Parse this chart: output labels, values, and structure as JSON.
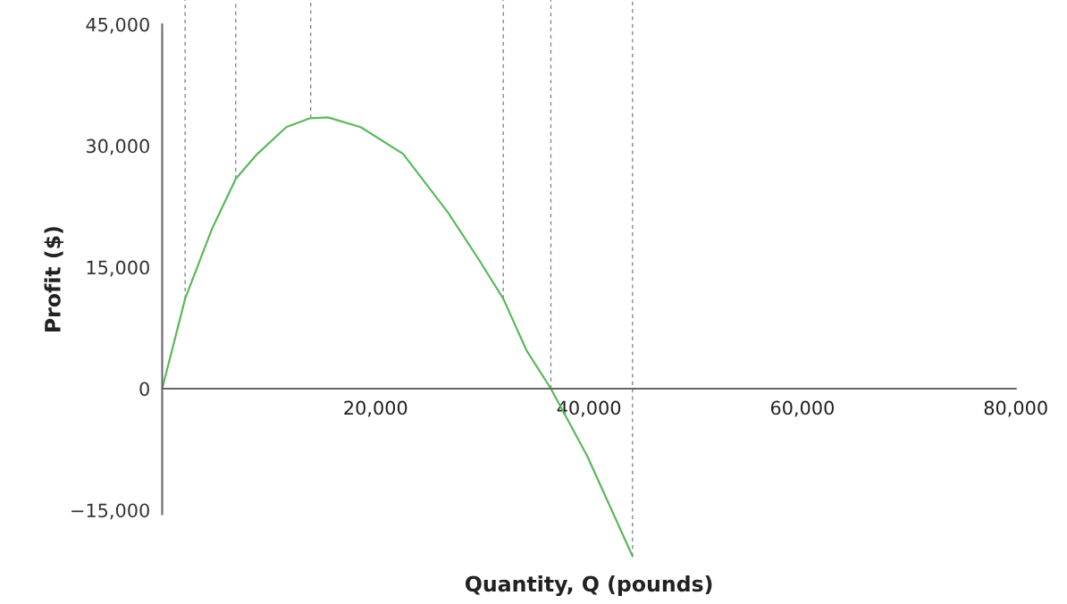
{
  "chart_data": {
    "type": "line",
    "xlabel": "Quantity, Q (pounds)",
    "ylabel": "Profit ($)",
    "x": [
      0,
      2150,
      4660,
      6890,
      8850,
      11630,
      13870,
      15540,
      18600,
      22570,
      26820,
      29650,
      31970,
      34180,
      36430,
      39830,
      44080
    ],
    "series": [
      {
        "color": "#5cb85c",
        "values": [
          0,
          11100,
          19700,
          25900,
          28900,
          32300,
          33400,
          33500,
          32300,
          29000,
          21700,
          16000,
          11100,
          4640,
          0,
          -8300,
          -20700
        ]
      }
    ],
    "xlim": [
      0,
      80000
    ],
    "ylim": [
      -21000,
      48000
    ],
    "xticks": [
      {
        "value": 20000,
        "label": "20,000"
      },
      {
        "value": 40000,
        "label": "40,000"
      },
      {
        "value": 60000,
        "label": "60,000"
      },
      {
        "value": 80000,
        "label": "80,000"
      }
    ],
    "yticks": [
      {
        "value": -15000,
        "label": "−15,000"
      },
      0,
      {
        "value": 15000,
        "label": "15,000"
      },
      {
        "value": 30000,
        "label": "30,000"
      },
      {
        "value": 45000,
        "label": "45,000"
      }
    ],
    "ref_lines": [
      {
        "axis": "x",
        "value": 2150,
        "color": "#888888",
        "line_style": "dashed"
      },
      {
        "axis": "x",
        "value": 6890,
        "color": "#888888",
        "line_style": "dashed"
      },
      {
        "axis": "x",
        "value": 13920,
        "color": "#888888",
        "line_style": "dashed"
      },
      {
        "axis": "x",
        "value": 31970,
        "color": "#888888",
        "line_style": "dashed"
      },
      {
        "axis": "x",
        "value": 36430,
        "color": "#888888",
        "line_style": "dashed"
      },
      {
        "axis": "x",
        "value": 44080,
        "color": "#888888",
        "line_style": "dashed"
      }
    ],
    "grid": false,
    "legend": false,
    "marker": "none",
    "line_style": "solid"
  }
}
